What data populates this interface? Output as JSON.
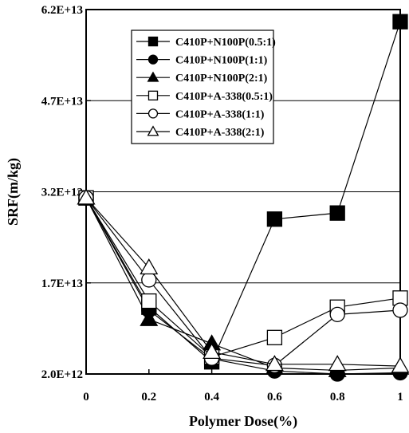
{
  "chart_data": {
    "type": "line",
    "title": "",
    "xlabel": "Polymer Dose(%)",
    "ylabel": "SRF(m/kg)",
    "x": [
      0,
      0.2,
      0.4,
      0.6,
      0.8,
      1
    ],
    "x_tick_labels": [
      "0",
      "0.2",
      "0.4",
      "0.6",
      "0.8",
      "1"
    ],
    "y_tick_values": [
      2000000000000.0,
      17000000000000.0,
      32000000000000.0,
      47000000000000.0,
      62000000000000.0
    ],
    "y_tick_labels": [
      "2.0E+12",
      "1.7E+13",
      "3.2E+13",
      "4.7E+13",
      "6.2E+13"
    ],
    "xlim": [
      0,
      1
    ],
    "ylim": [
      2000000000000.0,
      62000000000000.0
    ],
    "grid": "horizontal",
    "legend_position": "top-right",
    "series": [
      {
        "name": "C410P+N100P(0.5:1)",
        "marker": "filled-square",
        "values": [
          31000000000000.0,
          13000000000000.0,
          4000000000000.0,
          27500000000000.0,
          28500000000000.0,
          60000000000000.0
        ]
      },
      {
        "name": "C410P+N100P(1:1)",
        "marker": "filled-circle",
        "values": [
          31000000000000.0,
          12500000000000.0,
          4500000000000.0,
          2500000000000.0,
          2000000000000.0,
          2200000000000.0
        ]
      },
      {
        "name": "C410P+N100P(2:1)",
        "marker": "filled-triangle",
        "values": [
          31000000000000.0,
          11000000000000.0,
          7000000000000.0,
          3000000000000.0,
          2600000000000.0,
          3000000000000.0
        ]
      },
      {
        "name": "C410P+A-338(0.5:1)",
        "marker": "open-square",
        "values": [
          31000000000000.0,
          14000000000000.0,
          4800000000000.0,
          8000000000000.0,
          13000000000000.0,
          14500000000000.0
        ]
      },
      {
        "name": "C410P+A-338(1:1)",
        "marker": "open-circle",
        "values": [
          31000000000000.0,
          17500000000000.0,
          4600000000000.0,
          3400000000000.0,
          11800000000000.0,
          12500000000000.0
        ]
      },
      {
        "name": "C410P+A-338(2:1)",
        "marker": "open-triangle",
        "values": [
          31000000000000.0,
          19500000000000.0,
          5600000000000.0,
          3600000000000.0,
          3600000000000.0,
          3300000000000.0
        ]
      }
    ]
  }
}
